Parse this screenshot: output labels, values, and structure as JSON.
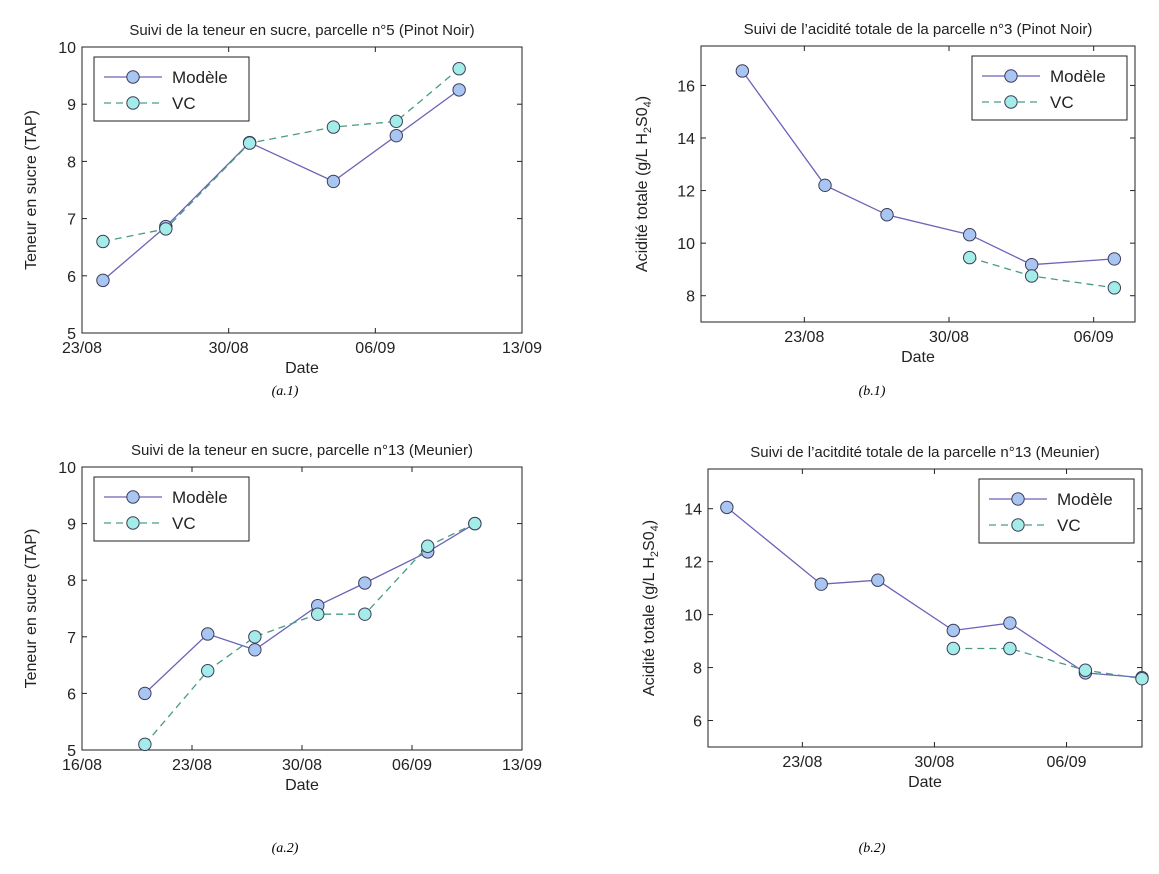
{
  "colors": {
    "model": "#6b64b8",
    "model_fill": "#a9c6f2",
    "vc": "#4a9a86",
    "vc_fill": "#a4ece8"
  },
  "chart_data": [
    {
      "type": "line",
      "title": "Suivi de la teneur en sucre, parcelle n°5 (Pinot Noir)",
      "xlabel": "Date",
      "ylabel": "Teneur en sucre (TAP)",
      "caption": "(a.1)",
      "xlim": [
        "2023-08-23",
        "2023-09-13"
      ],
      "ylim": [
        5,
        10
      ],
      "x_ticks": [
        {
          "x": "2023-08-23",
          "label": "23/08"
        },
        {
          "x": "2023-08-30",
          "label": "30/08"
        },
        {
          "x": "2023-09-06",
          "label": "06/09"
        },
        {
          "x": "2023-09-13",
          "label": "13/09"
        }
      ],
      "y_ticks": [
        5,
        6,
        7,
        8,
        9,
        10
      ],
      "legend_position": "top-left",
      "series": [
        {
          "name": "Modèle",
          "style": "solid",
          "x": [
            "2023-08-24",
            "2023-08-27",
            "2023-08-31",
            "2023-09-04",
            "2023-09-07",
            "2023-09-10"
          ],
          "y": [
            5.92,
            6.86,
            8.33,
            7.65,
            8.45,
            9.25
          ]
        },
        {
          "name": "VC",
          "style": "dashed",
          "x": [
            "2023-08-24",
            "2023-08-27",
            "2023-08-31",
            "2023-09-04",
            "2023-09-07",
            "2023-09-10"
          ],
          "y": [
            6.6,
            6.82,
            8.32,
            8.6,
            8.7,
            9.62
          ]
        }
      ]
    },
    {
      "type": "line",
      "title": "Suivi de l’acidité totale de la parcelle n°3 (Pinot Noir)",
      "xlabel": "Date",
      "ylabel": "Acidité totale (g/L H2S04)",
      "ylabel_parts": [
        "Acidité totale (g/L H",
        "2",
        "S0",
        "4",
        ")"
      ],
      "caption": "(b.1)",
      "xlim": [
        "2023-08-18",
        "2023-09-08"
      ],
      "ylim": [
        7,
        17.5
      ],
      "x_ticks": [
        {
          "x": "2023-08-23",
          "label": "23/08"
        },
        {
          "x": "2023-08-30",
          "label": "30/08"
        },
        {
          "x": "2023-09-06",
          "label": "06/09"
        }
      ],
      "y_ticks": [
        8,
        10,
        12,
        14,
        16
      ],
      "legend_position": "top-right",
      "series": [
        {
          "name": "Modèle",
          "style": "solid",
          "x": [
            "2023-08-20",
            "2023-08-24",
            "2023-08-27",
            "2023-08-31",
            "2023-09-03",
            "2023-09-07"
          ],
          "y": [
            16.55,
            12.2,
            11.08,
            10.32,
            9.18,
            9.4
          ]
        },
        {
          "name": "VC",
          "style": "dashed",
          "x": [
            "2023-08-31",
            "2023-09-03",
            "2023-09-07"
          ],
          "y": [
            9.45,
            8.75,
            8.3
          ]
        }
      ]
    },
    {
      "type": "line",
      "title": "Suivi de la teneur en sucre, parcelle n°13 (Meunier)",
      "xlabel": "Date",
      "ylabel": "Teneur en sucre (TAP)",
      "caption": "(a.2)",
      "xlim": [
        "2023-08-16",
        "2023-09-13"
      ],
      "ylim": [
        5,
        10
      ],
      "x_ticks": [
        {
          "x": "2023-08-16",
          "label": "16/08"
        },
        {
          "x": "2023-08-23",
          "label": "23/08"
        },
        {
          "x": "2023-08-30",
          "label": "30/08"
        },
        {
          "x": "2023-09-06",
          "label": "06/09"
        },
        {
          "x": "2023-09-13",
          "label": "13/09"
        }
      ],
      "y_ticks": [
        5,
        6,
        7,
        8,
        9,
        10
      ],
      "legend_position": "top-left",
      "series": [
        {
          "name": "Modèle",
          "style": "solid",
          "x": [
            "2023-08-20",
            "2023-08-24",
            "2023-08-27",
            "2023-08-31",
            "2023-09-03",
            "2023-09-07",
            "2023-09-10"
          ],
          "y": [
            6.0,
            7.05,
            6.77,
            7.55,
            7.95,
            8.5,
            9.0
          ]
        },
        {
          "name": "VC",
          "style": "dashed",
          "x": [
            "2023-08-20",
            "2023-08-24",
            "2023-08-27",
            "2023-08-31",
            "2023-09-03",
            "2023-09-07",
            "2023-09-10"
          ],
          "y": [
            5.1,
            6.4,
            7.0,
            7.4,
            7.4,
            8.6,
            9.0
          ]
        }
      ]
    },
    {
      "type": "line",
      "title": "Suivi de l’acitdité totale de la parcelle n°13 (Meunier)",
      "xlabel": "Date",
      "ylabel": "Acidité totale (g/L H2S04)",
      "ylabel_parts": [
        "Acidité totale (g/L H",
        "2",
        "S0",
        "4",
        ")"
      ],
      "caption": "(b.2)",
      "xlim": [
        "2023-08-18",
        "2023-09-10"
      ],
      "ylim": [
        5,
        15.5
      ],
      "x_ticks": [
        {
          "x": "2023-08-23",
          "label": "23/08"
        },
        {
          "x": "2023-08-30",
          "label": "30/08"
        },
        {
          "x": "2023-09-06",
          "label": "06/09"
        }
      ],
      "y_ticks": [
        6,
        8,
        10,
        12,
        14
      ],
      "legend_position": "top-right",
      "series": [
        {
          "name": "Modèle",
          "style": "solid",
          "x": [
            "2023-08-19",
            "2023-08-24",
            "2023-08-27",
            "2023-08-31",
            "2023-09-03",
            "2023-09-07",
            "2023-09-10"
          ],
          "y": [
            14.05,
            11.15,
            11.3,
            9.4,
            9.68,
            7.8,
            7.62
          ]
        },
        {
          "name": "VC",
          "style": "dashed",
          "x": [
            "2023-08-31",
            "2023-09-03",
            "2023-09-07",
            "2023-09-10"
          ],
          "y": [
            8.72,
            8.72,
            7.9,
            7.58
          ]
        }
      ]
    }
  ]
}
